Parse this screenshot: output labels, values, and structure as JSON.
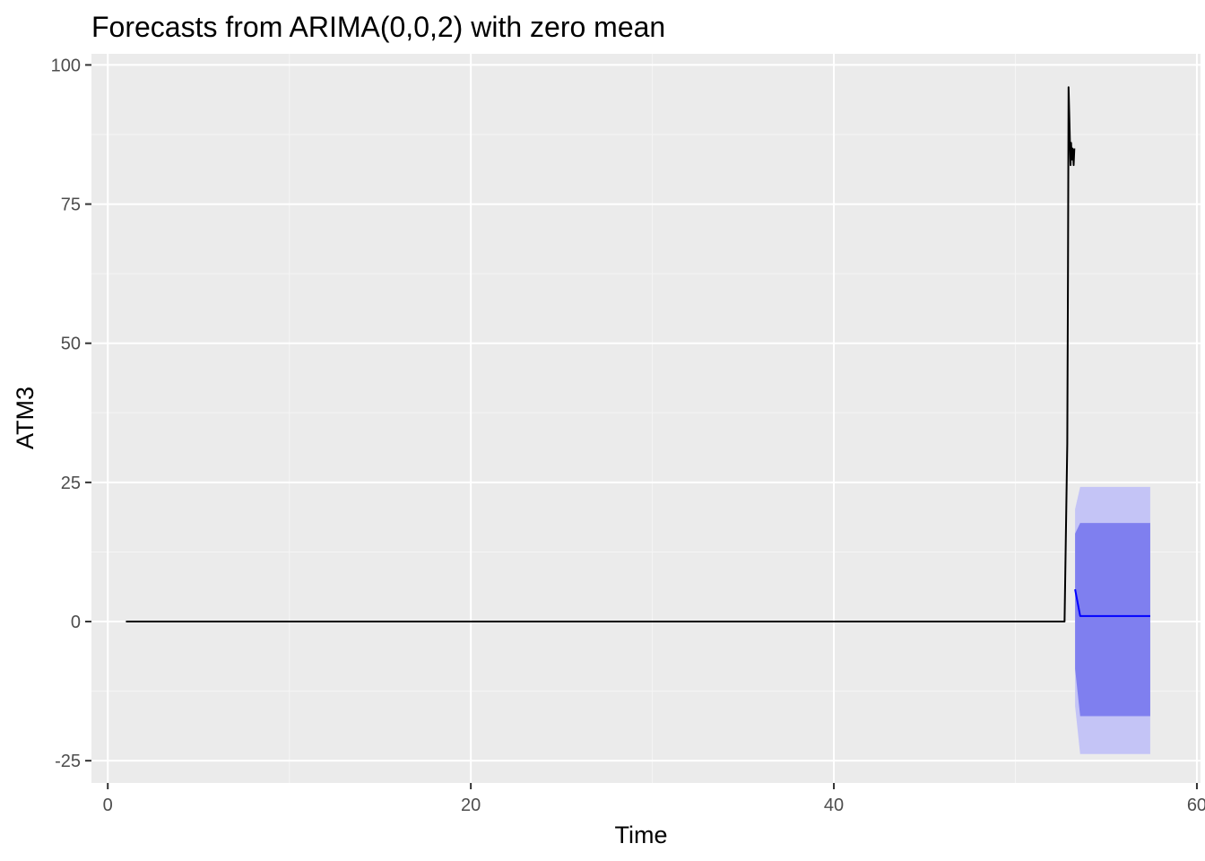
{
  "chart_data": {
    "type": "line",
    "title": "Forecasts from ARIMA(0,0,2) with zero mean",
    "xlabel": "Time",
    "ylabel": "ATM3",
    "xlim": [
      -0.9,
      60.2
    ],
    "ylim": [
      -29,
      102
    ],
    "x_ticks": [
      0,
      20,
      40,
      60
    ],
    "y_ticks": [
      -25,
      0,
      25,
      50,
      75,
      100
    ],
    "x_tick_labels": [
      "0",
      "20",
      "40",
      "60"
    ],
    "y_tick_labels": [
      "-25",
      "0",
      "25",
      "50",
      "75",
      "100"
    ],
    "grid": true,
    "legend": "none",
    "colors": {
      "panel_background": "#ebebeb",
      "grid_major": "#ffffff",
      "grid_minor": "#f5f5f5",
      "observed_line": "#000000",
      "forecast_line": "#0000ff",
      "interval_80": "#7f7fef",
      "interval_95": "#c4c4f6"
    },
    "series": [
      {
        "name": "ATM3",
        "x": [
          1,
          52.71,
          52.86,
          52.9,
          52.93,
          52.97,
          53.0,
          53.04,
          53.07,
          53.11,
          53.14,
          53.18,
          53.21,
          53.25
        ],
        "y": [
          0,
          0,
          32,
          64,
          96,
          91,
          87,
          82,
          86,
          83,
          85,
          84,
          82,
          85
        ]
      },
      {
        "name": "Point Forecast",
        "x": [
          53.29,
          53.57,
          57.43
        ],
        "y": [
          5.8,
          1.0,
          1.0
        ]
      }
    ],
    "intervals": [
      {
        "level": "95%",
        "x": [
          53.29,
          53.57,
          57.43
        ],
        "lower": [
          -15.2,
          -23.8,
          -23.8
        ],
        "upper": [
          20.2,
          24.2,
          24.2
        ]
      },
      {
        "level": "80%",
        "x": [
          53.29,
          53.57,
          57.43
        ],
        "lower": [
          -8.5,
          -17.0,
          -17.0
        ],
        "upper": [
          15.8,
          17.7,
          17.7
        ]
      }
    ]
  }
}
